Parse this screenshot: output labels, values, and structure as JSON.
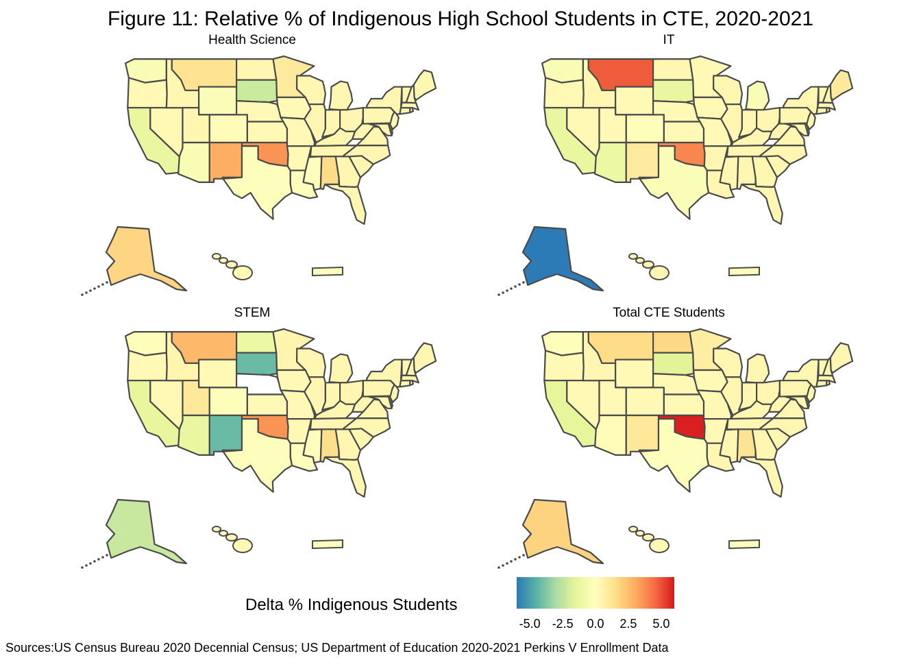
{
  "figure": {
    "title": "Figure 11: Relative % of Indigenous High School Students in CTE, 2020-2021",
    "source": "Sources:US Census Bureau 2020 Decennial Census; US Department of Education 2020-2021 Perkins V Enrollment Data"
  },
  "legend": {
    "title": "Delta % Indigenous Students",
    "ticks": [
      "-5.0",
      "-2.5",
      "0.0",
      "2.5",
      "5.0"
    ],
    "range": [
      -6,
      6
    ],
    "colors": [
      "#2c7bb6",
      "#59b2a6",
      "#abdda4",
      "#e6f598",
      "#ffffbf",
      "#fee08b",
      "#fdae61",
      "#f46d43",
      "#d7191c"
    ]
  },
  "chart_data": {
    "type": "choropleth",
    "variable": "Delta % Indigenous Students",
    "panels": [
      {
        "title": "Health  Science",
        "values": {
          "default": 0.4,
          "WA": -0.4,
          "OR": 0.3,
          "CA": -1.2,
          "NV": 0.3,
          "ID": 0.4,
          "MT": 1.3,
          "WY": -0.3,
          "UT": 0.4,
          "AZ": -0.4,
          "CO": 0.2,
          "NM": 3.0,
          "ND": 0.4,
          "SD": -2.2,
          "NE": 0.3,
          "KS": 0.3,
          "OK": 3.6,
          "TX": -0.1,
          "MN": 1.0,
          "IA": 0.3,
          "MO": 0.3,
          "AR": 0.3,
          "LA": -0.1,
          "MS": -0.1,
          "AL": 1.6,
          "AK": 1.8,
          "HI": 0.3,
          "PR": -0.1
        }
      },
      {
        "title": "IT",
        "values": {
          "default": 0.4,
          "WA": -0.4,
          "OR": 0.3,
          "CA": -1.2,
          "NV": 0.3,
          "ID": 0.4,
          "MT": 4.8,
          "WY": 0.3,
          "UT": 0.3,
          "AZ": -1.1,
          "CO": -0.2,
          "NM": 1.0,
          "ND": 0.4,
          "SD": -1.2,
          "NE": 0.3,
          "KS": 0.3,
          "OK": 3.9,
          "TX": -0.3,
          "MN": 0.3,
          "IA": 0.3,
          "MO": 0.3,
          "MI": -0.4,
          "ME": 1.0,
          "AK": -6.0,
          "HI": 0.4,
          "PR": 0.2
        }
      },
      {
        "title": "STEM",
        "values": {
          "default": 0.4,
          "WA": -0.2,
          "OR": 0.3,
          "CA": -1.3,
          "NV": 0.3,
          "ID": 0.5,
          "MT": 2.7,
          "WY": 0.3,
          "UT": 1.1,
          "AZ": -1.2,
          "CO": -0.2,
          "NM": -4.2,
          "ND": -1.1,
          "SD": -4.2,
          "NE": null,
          "KS": 0.3,
          "OK": 3.6,
          "TX": -0.1,
          "MN": 0.5,
          "IA": 0.3,
          "MO": 0.3,
          "AR": 0.3,
          "LA": -0.1,
          "MS": -0.1,
          "AL": 1.5,
          "AK": -2.3,
          "HI": 0.3,
          "PR": -0.1
        }
      },
      {
        "title": "Total  CTE  Students",
        "values": {
          "default": 0.4,
          "WA": -0.2,
          "OR": 0.3,
          "CA": -1.4,
          "NV": 0.3,
          "ID": 0.4,
          "MT": 1.6,
          "WY": 0.3,
          "UT": 0.3,
          "AZ": 0.2,
          "CO": 0.3,
          "NM": 1.1,
          "ND": 1.7,
          "SD": -1.6,
          "NE": 0.3,
          "KS": 0.3,
          "OK": 5.9,
          "TX": -0.1,
          "MN": 0.8,
          "IA": 0.3,
          "MO": 0.3,
          "AR": 0.3,
          "AL": 1.3,
          "AK": 1.9,
          "HI": 0.3,
          "PR": -0.2
        }
      }
    ]
  }
}
